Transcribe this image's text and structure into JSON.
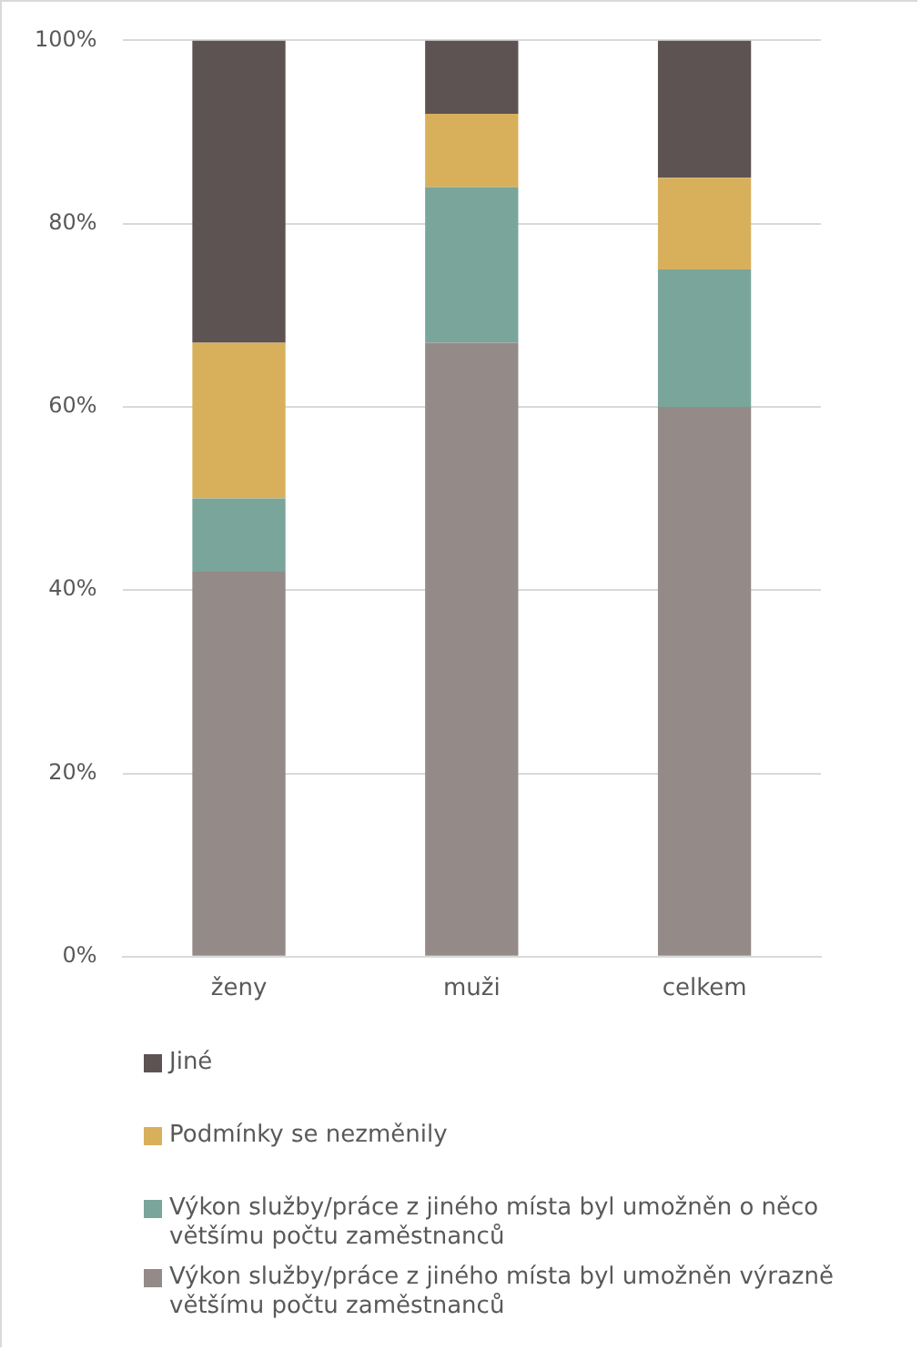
{
  "chart_data": {
    "type": "bar",
    "stacked": true,
    "categories": [
      "ženy",
      "muži",
      "celkem"
    ],
    "series": [
      {
        "name": "Výkon služby/práce z jiného místa byl umožněn výrazně většímu počtu zaměstnanců",
        "color": "#948a88",
        "values": [
          42,
          67,
          60
        ]
      },
      {
        "name": "Výkon služby/práce z jiného místa byl umožněn o něco většímu počtu zaměstnanců",
        "color": "#7aa59a",
        "values": [
          8,
          17,
          15
        ]
      },
      {
        "name": "Podmínky se nezměnily",
        "color": "#d8b05c",
        "values": [
          17,
          8,
          10
        ]
      },
      {
        "name": "Jiné",
        "color": "#5c5352",
        "values": [
          33,
          8,
          15
        ]
      }
    ],
    "ylim": [
      0,
      100
    ],
    "yticks": [
      {
        "value": 0,
        "label": "0%"
      },
      {
        "value": 20,
        "label": "20%"
      },
      {
        "value": 40,
        "label": "40%"
      },
      {
        "value": 60,
        "label": "60%"
      },
      {
        "value": 80,
        "label": "80%"
      },
      {
        "value": 100,
        "label": "100%"
      }
    ],
    "grid": "y",
    "legend": "bottom"
  }
}
